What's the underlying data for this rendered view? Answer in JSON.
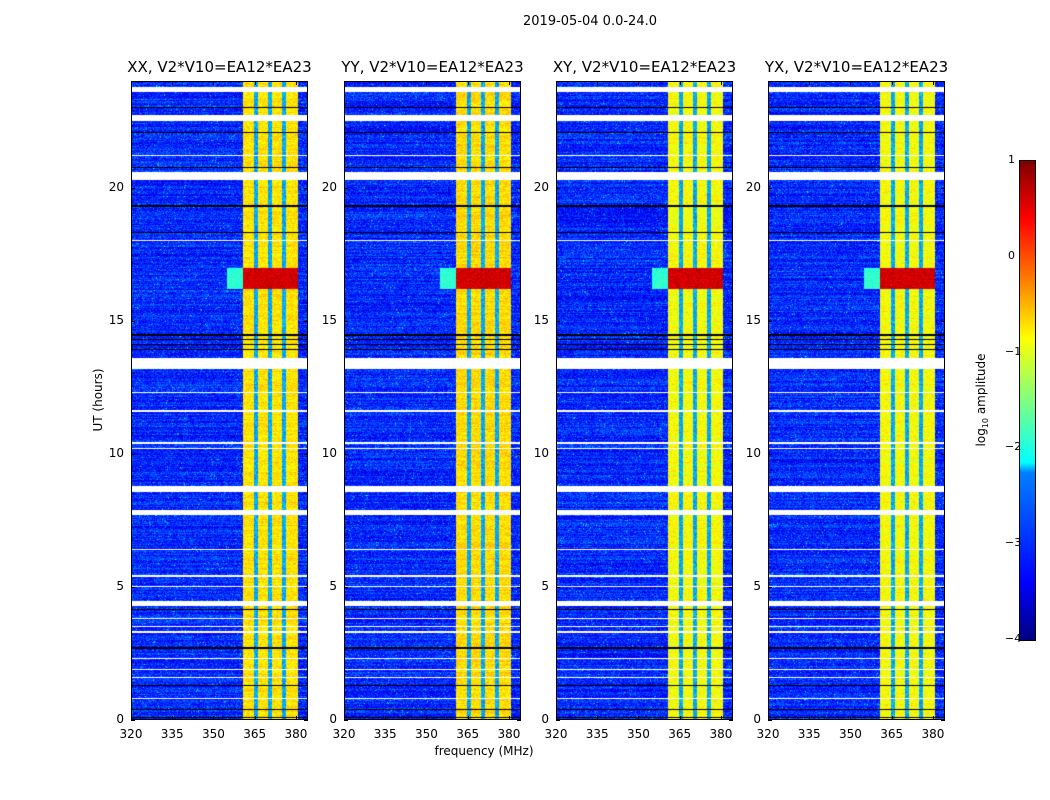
{
  "chart_data": {
    "type": "heatmap",
    "title": "2019-05-04 0.0-24.0",
    "xlabel": "frequency (MHz)",
    "ylabel": "UT (hours)",
    "xlim": [
      320,
      384.4
    ],
    "ylim": [
      0,
      24
    ],
    "xticks": [
      "320",
      "335",
      "350",
      "365",
      "380"
    ],
    "xtick_values": [
      320,
      335,
      350,
      365,
      380
    ],
    "yticks": [
      "0",
      "5",
      "10",
      "15",
      "20"
    ],
    "ytick_values": [
      0,
      5,
      10,
      15,
      20
    ],
    "panels": [
      {
        "title": "XX, V2*V10=EA12*EA23",
        "seed": 1,
        "band_level": -0.75
      },
      {
        "title": "YY, V2*V10=EA12*EA23",
        "seed": 2,
        "band_level": -0.7
      },
      {
        "title": "XY, V2*V10=EA12*EA23",
        "seed": 3,
        "band_level": -0.9
      },
      {
        "title": "YX, V2*V10=EA12*EA23",
        "seed": 4,
        "band_level": -0.9
      }
    ],
    "background_level": -3.2,
    "bright_band_mhz": [
      360.7,
      380.4
    ],
    "dark_channels_mhz": [
      365.3,
      370.4,
      375.5
    ],
    "flare_hours": [
      16.2,
      17.0
    ],
    "flare_level": 0.6,
    "gaps_hours": [
      [
        23.6,
        23.8
      ],
      [
        22.5,
        22.75
      ],
      [
        20.3,
        20.6
      ],
      [
        13.2,
        13.6
      ],
      [
        8.6,
        8.8
      ],
      [
        7.7,
        7.9
      ],
      [
        4.3,
        4.5
      ],
      [
        21.2,
        21.25
      ],
      [
        18.0,
        18.05
      ],
      [
        12.3,
        12.35
      ],
      [
        11.6,
        11.65
      ],
      [
        10.4,
        10.45
      ],
      [
        10.2,
        10.25
      ],
      [
        6.4,
        6.45
      ],
      [
        5.4,
        5.45
      ],
      [
        5.0,
        5.05
      ],
      [
        3.8,
        3.85
      ],
      [
        3.5,
        3.55
      ],
      [
        3.3,
        3.35
      ],
      [
        1.9,
        1.95
      ],
      [
        1.6,
        1.65
      ],
      [
        0.8,
        0.85
      ],
      [
        2.3,
        2.35
      ]
    ],
    "dark_lines_hours": [
      [
        23.0,
        23.04
      ],
      [
        22.05,
        22.1
      ],
      [
        20.75,
        20.8
      ],
      [
        19.3,
        19.35
      ],
      [
        18.3,
        18.35
      ],
      [
        14.45,
        14.5
      ],
      [
        14.3,
        14.33
      ],
      [
        14.1,
        14.13
      ],
      [
        13.9,
        13.95
      ],
      [
        4.15,
        4.2
      ],
      [
        2.7,
        2.75
      ],
      [
        1.3,
        1.35
      ],
      [
        0.4,
        0.45
      ],
      [
        0.1,
        0.15
      ]
    ],
    "colorbar": {
      "label": "log10 amplitude",
      "range": [
        -4,
        1
      ],
      "ticks": [
        "1",
        "0",
        "−1",
        "−2",
        "−3",
        "−4"
      ],
      "tick_values": [
        1,
        0,
        -1,
        -2,
        -3,
        -4
      ],
      "colormap": "jet"
    }
  }
}
